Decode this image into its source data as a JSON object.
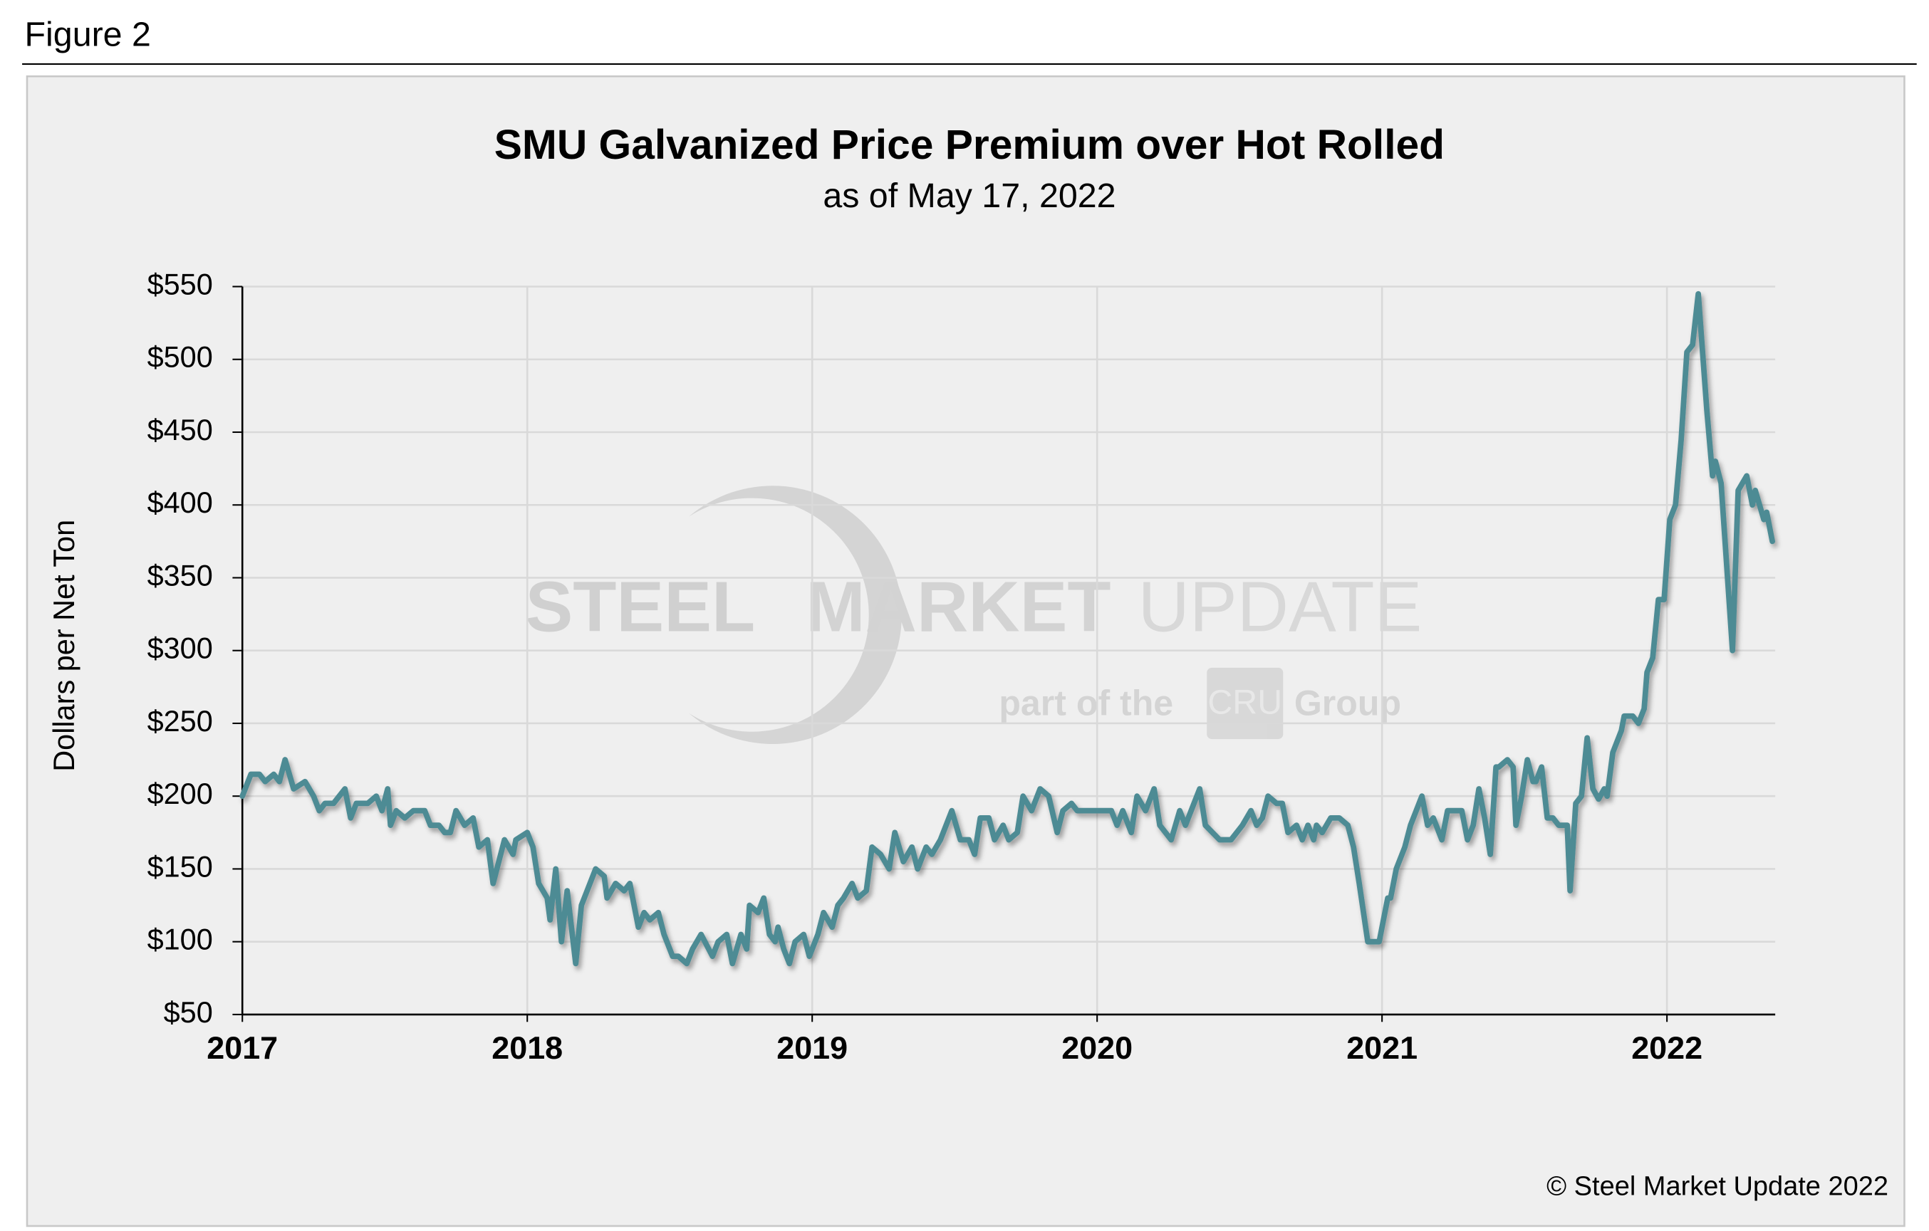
{
  "figure_label": "Figure 2",
  "chart_data": {
    "type": "line",
    "title": "SMU Galvanized Price Premium over Hot Rolled",
    "subtitle": "as of May 17, 2022",
    "ylabel": "Dollars per Net Ton",
    "copyright": "© Steel Market Update 2022",
    "watermark": {
      "brand": [
        "STEEL",
        "MARKET",
        "UPDATE"
      ],
      "tagline": [
        "part of the",
        "CRU",
        "Group"
      ]
    },
    "color": "#4e8b94",
    "grid": true,
    "xlim": [
      2017,
      2022.38
    ],
    "xticks": [
      2017,
      2018,
      2019,
      2020,
      2021,
      2022
    ],
    "ylim": [
      50,
      550
    ],
    "yticks": [
      {
        "value": 50,
        "label": "$50"
      },
      {
        "value": 100,
        "label": "$100"
      },
      {
        "value": 150,
        "label": "$150"
      },
      {
        "value": 200,
        "label": "$200"
      },
      {
        "value": 250,
        "label": "$250"
      },
      {
        "value": 300,
        "label": "$300"
      },
      {
        "value": 350,
        "label": "$350"
      },
      {
        "value": 400,
        "label": "$400"
      },
      {
        "value": 450,
        "label": "$450"
      },
      {
        "value": 500,
        "label": "$500"
      },
      {
        "value": 550,
        "label": "$550"
      }
    ],
    "x": [
      2017.0,
      2017.03,
      2017.06,
      2017.08,
      2017.11,
      2017.13,
      2017.15,
      2017.18,
      2017.22,
      2017.25,
      2017.27,
      2017.29,
      2017.32,
      2017.36,
      2017.38,
      2017.4,
      2017.44,
      2017.47,
      2017.49,
      2017.51,
      2017.52,
      2017.54,
      2017.57,
      2017.6,
      2017.64,
      2017.66,
      2017.69,
      2017.71,
      2017.73,
      2017.75,
      2017.78,
      2017.81,
      2017.83,
      2017.86,
      2017.88,
      2017.92,
      2017.95,
      2017.96,
      2018.0,
      2018.02,
      2018.04,
      2018.07,
      2018.08,
      2018.1,
      2018.12,
      2018.14,
      2018.17,
      2018.19,
      2018.21,
      2018.24,
      2018.27,
      2018.28,
      2018.31,
      2018.34,
      2018.36,
      2018.39,
      2018.41,
      2018.43,
      2018.46,
      2018.48,
      2018.51,
      2018.53,
      2018.56,
      2018.58,
      2018.61,
      2018.65,
      2018.67,
      2018.7,
      2018.72,
      2018.75,
      2018.77,
      2018.78,
      2018.81,
      2018.83,
      2018.85,
      2018.87,
      2018.88,
      2018.9,
      2018.92,
      2018.94,
      2018.97,
      2018.99,
      2019.02,
      2019.04,
      2019.07,
      2019.09,
      2019.11,
      2019.14,
      2019.16,
      2019.19,
      2019.21,
      2019.24,
      2019.27,
      2019.29,
      2019.32,
      2019.35,
      2019.37,
      2019.4,
      2019.42,
      2019.45,
      2019.49,
      2019.52,
      2019.55,
      2019.57,
      2019.59,
      2019.62,
      2019.64,
      2019.67,
      2019.69,
      2019.72,
      2019.74,
      2019.77,
      2019.8,
      2019.83,
      2019.86,
      2019.88,
      2019.91,
      2019.93,
      2019.97,
      2020.02,
      2020.05,
      2020.07,
      2020.09,
      2020.12,
      2020.14,
      2020.17,
      2020.2,
      2020.22,
      2020.26,
      2020.29,
      2020.31,
      2020.34,
      2020.36,
      2020.38,
      2020.43,
      2020.47,
      2020.51,
      2020.54,
      2020.56,
      2020.58,
      2020.6,
      2020.63,
      2020.65,
      2020.67,
      2020.7,
      2020.72,
      2020.74,
      2020.76,
      2020.77,
      2020.79,
      2020.82,
      2020.85,
      2020.88,
      2020.9,
      2020.92,
      2020.95,
      2020.99,
      2021.02,
      2021.03,
      2021.05,
      2021.08,
      2021.1,
      2021.14,
      2021.16,
      2021.18,
      2021.21,
      2021.23,
      2021.28,
      2021.3,
      2021.32,
      2021.34,
      2021.36,
      2021.38,
      2021.4,
      2021.41,
      2021.44,
      2021.46,
      2021.47,
      2021.49,
      2021.51,
      2021.53,
      2021.54,
      2021.56,
      2021.58,
      2021.6,
      2021.62,
      2021.65,
      2021.66,
      2021.68,
      2021.7,
      2021.72,
      2021.74,
      2021.76,
      2021.78,
      2021.79,
      2021.81,
      2021.84,
      2021.85,
      2021.88,
      2021.9,
      2021.92,
      2021.93,
      2021.95,
      2021.97,
      2021.99,
      2022.01,
      2022.03,
      2022.05,
      2022.07,
      2022.09,
      2022.11,
      2022.14,
      2022.16,
      2022.17,
      2022.19,
      2022.23,
      2022.25,
      2022.28,
      2022.3,
      2022.31,
      2022.34,
      2022.35,
      2022.37
    ],
    "values": [
      200,
      215,
      215,
      210,
      215,
      210,
      225,
      205,
      210,
      200,
      190,
      195,
      195,
      205,
      185,
      195,
      195,
      200,
      190,
      205,
      180,
      190,
      185,
      190,
      190,
      180,
      180,
      175,
      175,
      190,
      180,
      185,
      165,
      170,
      140,
      170,
      160,
      170,
      175,
      165,
      140,
      130,
      115,
      150,
      100,
      135,
      85,
      125,
      135,
      150,
      145,
      130,
      140,
      135,
      140,
      110,
      120,
      115,
      120,
      105,
      90,
      90,
      85,
      95,
      105,
      90,
      100,
      105,
      85,
      105,
      95,
      125,
      120,
      130,
      105,
      100,
      110,
      95,
      85,
      100,
      105,
      90,
      105,
      120,
      110,
      125,
      130,
      140,
      130,
      135,
      165,
      160,
      150,
      175,
      155,
      165,
      150,
      165,
      160,
      170,
      190,
      170,
      170,
      160,
      185,
      185,
      170,
      180,
      170,
      175,
      200,
      190,
      205,
      200,
      175,
      190,
      195,
      190,
      190,
      190,
      190,
      180,
      190,
      175,
      200,
      190,
      205,
      180,
      170,
      190,
      180,
      195,
      205,
      180,
      170,
      170,
      180,
      190,
      180,
      185,
      200,
      195,
      195,
      175,
      180,
      170,
      180,
      170,
      180,
      175,
      185,
      185,
      180,
      165,
      140,
      100,
      100,
      130,
      130,
      150,
      165,
      180,
      200,
      180,
      185,
      170,
      190,
      190,
      170,
      180,
      205,
      185,
      160,
      220,
      220,
      225,
      220,
      180,
      200,
      225,
      210,
      210,
      220,
      185,
      185,
      180,
      180,
      135,
      195,
      200,
      240,
      205,
      198,
      205,
      200,
      230,
      245,
      255,
      255,
      250,
      260,
      285,
      295,
      335,
      335,
      390,
      400,
      445,
      505,
      510,
      545,
      465,
      420,
      430,
      415,
      300,
      410,
      420,
      400,
      410,
      390,
      395,
      375
    ]
  }
}
